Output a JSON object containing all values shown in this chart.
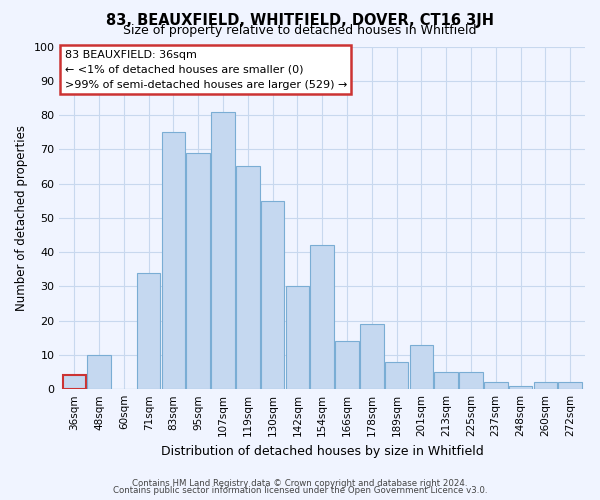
{
  "title": "83, BEAUXFIELD, WHITFIELD, DOVER, CT16 3JH",
  "subtitle": "Size of property relative to detached houses in Whitfield",
  "xlabel": "Distribution of detached houses by size in Whitfield",
  "ylabel": "Number of detached properties",
  "bar_labels": [
    "36sqm",
    "48sqm",
    "60sqm",
    "71sqm",
    "83sqm",
    "95sqm",
    "107sqm",
    "119sqm",
    "130sqm",
    "142sqm",
    "154sqm",
    "166sqm",
    "178sqm",
    "189sqm",
    "201sqm",
    "213sqm",
    "225sqm",
    "237sqm",
    "248sqm",
    "260sqm",
    "272sqm"
  ],
  "bar_heights": [
    4,
    10,
    0,
    34,
    75,
    69,
    81,
    65,
    55,
    30,
    42,
    14,
    19,
    8,
    13,
    5,
    5,
    2,
    1,
    2,
    2
  ],
  "bar_color": "#c5d8f0",
  "bar_edge_color": "#7aadd4",
  "highlight_bar_index": 0,
  "highlight_edge_color": "#cc3333",
  "annotation_line1": "83 BEAUXFIELD: 36sqm",
  "annotation_line2": "← <1% of detached houses are smaller (0)",
  "annotation_line3": ">99% of semi-detached houses are larger (529) →",
  "annotation_box_color": "white",
  "annotation_box_edge_color": "#cc3333",
  "ylim": [
    0,
    100
  ],
  "footer_line1": "Contains HM Land Registry data © Crown copyright and database right 2024.",
  "footer_line2": "Contains public sector information licensed under the Open Government Licence v3.0.",
  "bg_color": "#f0f4ff",
  "grid_color": "#c8d8ee"
}
